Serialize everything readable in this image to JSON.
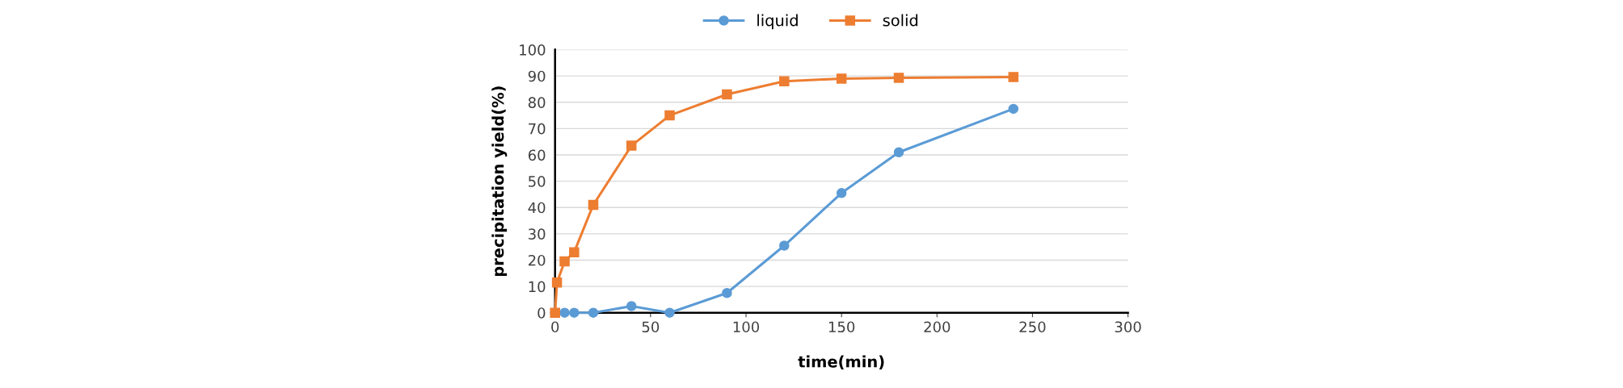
{
  "chart_data": {
    "type": "line",
    "xlabel": "time(min)",
    "ylabel": "precipitation yield(%)",
    "xlim": [
      0,
      300
    ],
    "xticks": [
      0,
      50,
      100,
      150,
      200,
      250,
      300
    ],
    "ylim": [
      0,
      100
    ],
    "yticks": [
      0,
      10,
      20,
      30,
      40,
      50,
      60,
      70,
      80,
      90,
      100
    ],
    "grid": "y",
    "legend": "top",
    "line_style": "solid",
    "series": [
      {
        "name": "liquid",
        "color": "#5b9bd5",
        "marker": "circle",
        "x": [
          0,
          5,
          10,
          20,
          40,
          60,
          90,
          120,
          150,
          180,
          240
        ],
        "values": [
          0,
          0,
          0,
          0,
          2.5,
          0,
          7.5,
          25.5,
          45.5,
          61,
          77.5
        ]
      },
      {
        "name": "solid",
        "color": "#ed7d31",
        "marker": "square",
        "x": [
          0,
          1,
          5,
          10,
          20,
          40,
          60,
          90,
          120,
          150,
          180,
          240
        ],
        "values": [
          0,
          11.5,
          19.5,
          23,
          41,
          63.5,
          75,
          83,
          88,
          89,
          89.3,
          89.6
        ]
      }
    ]
  }
}
